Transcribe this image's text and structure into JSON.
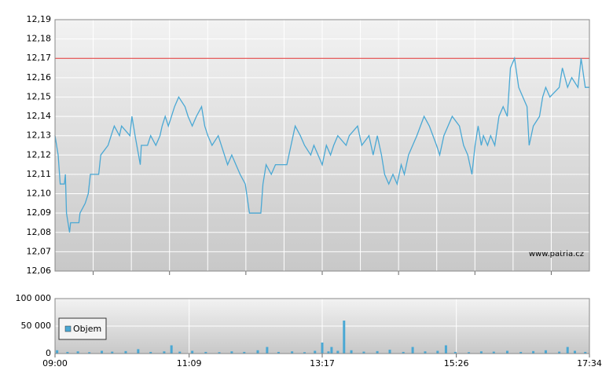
{
  "chart_data": [
    {
      "type": "line",
      "x": [
        0,
        3,
        5,
        9,
        10,
        11,
        14,
        15,
        23,
        24,
        29,
        32,
        34,
        42,
        44,
        51,
        54,
        57,
        62,
        64,
        72,
        74,
        77,
        82,
        83,
        89,
        92,
        97,
        101,
        103,
        106,
        109,
        112,
        115,
        119,
        125,
        128,
        132,
        136,
        141,
        144,
        147,
        151,
        157,
        163,
        166,
        170,
        174,
        178,
        183,
        187,
        198,
        200,
        203,
        208,
        212,
        223,
        227,
        231,
        236,
        240,
        246,
        249,
        253,
        257,
        261,
        265,
        268,
        272,
        280,
        283,
        291,
        295,
        302,
        306,
        310,
        314,
        317,
        321,
        325,
        329,
        333,
        336,
        340,
        344,
        348,
        355,
        360,
        367,
        370,
        374,
        378,
        382,
        389,
        393,
        397,
        401,
        404,
        407,
        410,
        412,
        416,
        419,
        423,
        427,
        431,
        435,
        438,
        442,
        446,
        450,
        454,
        456,
        460,
        466,
        469,
        472,
        476,
        485,
        488,
        493,
        497,
        503,
        506,
        510,
        514
      ],
      "values": [
        12.13,
        12.12,
        12.105,
        12.105,
        12.11,
        12.09,
        12.08,
        12.085,
        12.085,
        12.09,
        12.095,
        12.1,
        12.11,
        12.11,
        12.12,
        12.125,
        12.13,
        12.135,
        12.13,
        12.135,
        12.13,
        12.14,
        12.13,
        12.115,
        12.125,
        12.125,
        12.13,
        12.125,
        12.13,
        12.135,
        12.14,
        12.135,
        12.14,
        12.145,
        12.15,
        12.145,
        12.14,
        12.135,
        12.14,
        12.145,
        12.135,
        12.13,
        12.125,
        12.13,
        12.12,
        12.115,
        12.12,
        12.115,
        12.11,
        12.105,
        12.09,
        12.09,
        12.105,
        12.115,
        12.11,
        12.115,
        12.115,
        12.125,
        12.135,
        12.13,
        12.125,
        12.12,
        12.125,
        12.12,
        12.115,
        12.125,
        12.12,
        12.125,
        12.13,
        12.125,
        12.13,
        12.135,
        12.125,
        12.13,
        12.12,
        12.13,
        12.12,
        12.11,
        12.105,
        12.11,
        12.105,
        12.115,
        12.11,
        12.12,
        12.125,
        12.13,
        12.14,
        12.135,
        12.125,
        12.12,
        12.13,
        12.135,
        12.14,
        12.135,
        12.125,
        12.12,
        12.11,
        12.125,
        12.135,
        12.125,
        12.13,
        12.125,
        12.13,
        12.125,
        12.14,
        12.145,
        12.14,
        12.165,
        12.17,
        12.155,
        12.15,
        12.145,
        12.125,
        12.135,
        12.14,
        12.15,
        12.155,
        12.15,
        12.155,
        12.165,
        12.155,
        12.16,
        12.155,
        12.17,
        12.155,
        12.155
      ],
      "color": "#4aa8d4",
      "reference_line": 12.17,
      "reference_color": "#e03030",
      "xlim": [
        0,
        514
      ],
      "ylim": [
        12.06,
        12.19
      ],
      "yticks": [
        {
          "value": 12.06,
          "label": "12,06"
        },
        {
          "value": 12.07,
          "label": "12,07"
        },
        {
          "value": 12.08,
          "label": "12,08"
        },
        {
          "value": 12.09,
          "label": "12,09"
        },
        {
          "value": 12.1,
          "label": "12,10"
        },
        {
          "value": 12.11,
          "label": "12,11"
        },
        {
          "value": 12.12,
          "label": "12,12"
        },
        {
          "value": 12.13,
          "label": "12,13"
        },
        {
          "value": 12.14,
          "label": "12,14"
        },
        {
          "value": 12.15,
          "label": "12,15"
        },
        {
          "value": 12.16,
          "label": "12,16"
        },
        {
          "value": 12.17,
          "label": "12,17"
        },
        {
          "value": 12.18,
          "label": "12,18"
        },
        {
          "value": 12.19,
          "label": "12,19"
        }
      ],
      "watermark": "www.patria.cz",
      "grid": true
    },
    {
      "type": "bar",
      "x": [
        2,
        12,
        22,
        33,
        45,
        55,
        68,
        80,
        92,
        105,
        112,
        120,
        132,
        145,
        158,
        170,
        182,
        195,
        204,
        215,
        228,
        240,
        250,
        257,
        263,
        266,
        272,
        278,
        285,
        297,
        310,
        322,
        335,
        344,
        356,
        368,
        376,
        385,
        398,
        410,
        422,
        435,
        448,
        460,
        472,
        485,
        493,
        500,
        510
      ],
      "series": [
        {
          "name": "Objem",
          "color": "#4aa8d4",
          "values": [
            6000,
            3000,
            4000,
            2500,
            5000,
            3500,
            4500,
            8000,
            3000,
            4000,
            15000,
            3500,
            5000,
            3000,
            2500,
            4000,
            3000,
            6000,
            12000,
            3000,
            4000,
            2500,
            5000,
            20000,
            4000,
            12000,
            5000,
            60000,
            6000,
            3500,
            4500,
            7000,
            3000,
            12000,
            4000,
            5000,
            15000,
            3000,
            2500,
            4000,
            3500,
            5000,
            3000,
            4500,
            6000,
            3500,
            12000,
            5000,
            3000
          ]
        }
      ],
      "xlim": [
        0,
        514
      ],
      "xticks": [
        {
          "value": 0,
          "label": "09:00"
        },
        {
          "value": 129,
          "label": "11:09"
        },
        {
          "value": 257,
          "label": "13:17"
        },
        {
          "value": 386,
          "label": "15:26"
        },
        {
          "value": 514,
          "label": "17:34"
        }
      ],
      "ylim": [
        0,
        100000
      ],
      "yticks": [
        0,
        {
          "value": 50000,
          "label": "50 000"
        },
        {
          "value": 100000,
          "label": "100 000"
        }
      ],
      "legend": "upper-left",
      "grid": true
    }
  ]
}
